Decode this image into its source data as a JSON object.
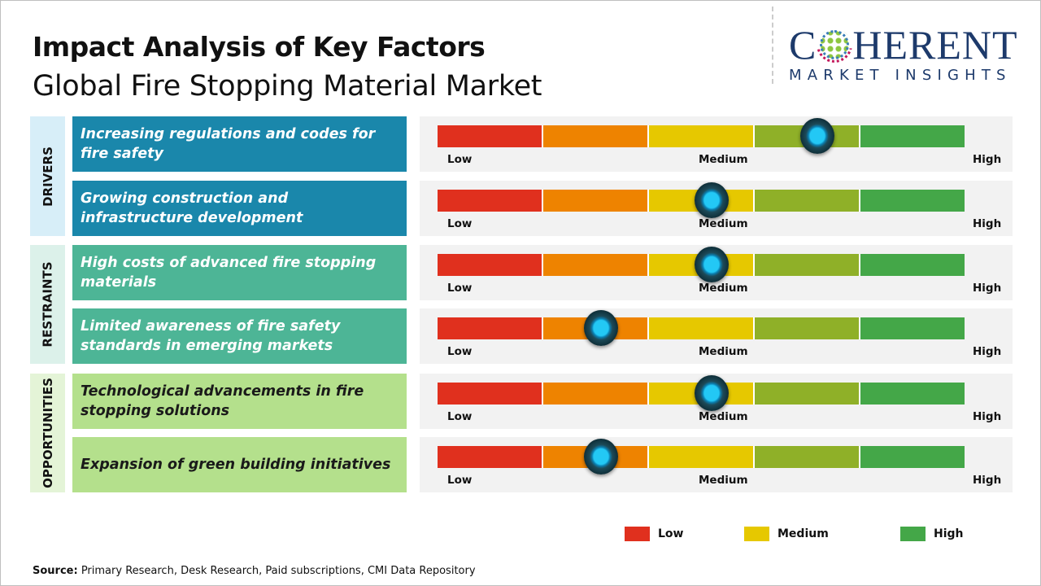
{
  "header": {
    "title": "Impact Analysis of Key Factors",
    "subtitle": "Global Fire Stopping Material Market"
  },
  "logo": {
    "main_left": "C",
    "main_right": "HERENT",
    "sub": "MARKET INSIGHTS"
  },
  "scale_labels": {
    "low": "Low",
    "medium": "Medium",
    "high": "High"
  },
  "colors": {
    "low": "#e0301e",
    "low_mid": "#ee8300",
    "medium": "#e6c800",
    "mid_high": "#8fb028",
    "high": "#44a748"
  },
  "categories": [
    {
      "label": "DRIVERS",
      "bg": "#d7eef8",
      "factor_bg": "#1a87ab",
      "text_color": "#ffffff"
    },
    {
      "label": "RESTRAINTS",
      "bg": "#dcf1ea",
      "factor_bg": "#4db596",
      "text_color": "#ffffff"
    },
    {
      "label": "OPPORTUNITIES",
      "bg": "#e4f4d7",
      "factor_bg": "#b4e08c",
      "text_color": "#1a1a1a"
    }
  ],
  "chart_data": {
    "type": "gauge-bars",
    "scale": [
      "Low",
      "Medium",
      "High"
    ],
    "factors": [
      {
        "category": "DRIVERS",
        "text": "Increasing regulations and codes for fire safety",
        "impact": 0.72
      },
      {
        "category": "DRIVERS",
        "text": "Growing construction and infrastructure development",
        "impact": 0.52
      },
      {
        "category": "RESTRAINTS",
        "text": "High costs of advanced fire stopping materials",
        "impact": 0.52
      },
      {
        "category": "RESTRAINTS",
        "text": "Limited awareness of fire safety standards in emerging markets",
        "impact": 0.31
      },
      {
        "category": "OPPORTUNITIES",
        "text": "Technological advancements in fire stopping solutions",
        "impact": 0.52
      },
      {
        "category": "OPPORTUNITIES",
        "text": "Expansion of green building initiatives",
        "impact": 0.31
      }
    ]
  },
  "legend": [
    {
      "label": "Low",
      "color": "#e0301e"
    },
    {
      "label": "Medium",
      "color": "#e6c800"
    },
    {
      "label": "High",
      "color": "#44a748"
    }
  ],
  "source": {
    "label": "Source:",
    "text": " Primary Research, Desk Research, Paid subscriptions, CMI Data Repository"
  }
}
